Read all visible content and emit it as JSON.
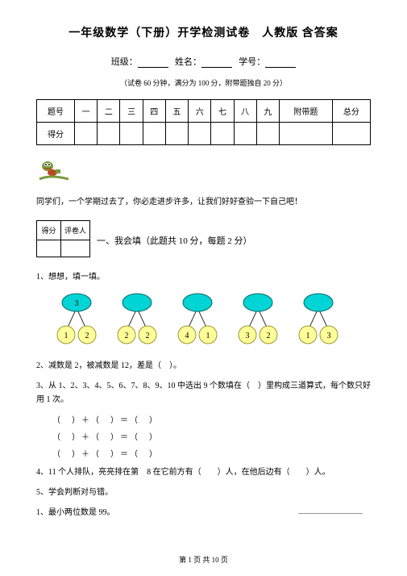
{
  "title": "一年级数学（下册）开学检测试卷　人教版 含答案",
  "info": {
    "class": "班级：",
    "name": "姓名：",
    "id": "学号："
  },
  "note": "（试卷 60 分钟，满分为 100 分，附带题独自 20 分）",
  "table": {
    "r1": [
      "题号",
      "一",
      "二",
      "三",
      "四",
      "五",
      "六",
      "七",
      "八",
      "九",
      "附带题",
      "总分"
    ],
    "r2": "得分"
  },
  "msg": "同学们，一个学期过去了，你必走进步许多，让我们好好查验一下自己吧！",
  "smallTable": {
    "c1": "得分",
    "c2": "评卷人"
  },
  "section1": "一、我会填（此题共 10 分，每题 2 分）",
  "q1": "1、想想，填一填。",
  "nodes": {
    "top": [
      "3",
      "",
      "",
      "",
      ""
    ],
    "botL": [
      "1",
      "2",
      "4",
      "3",
      "1"
    ],
    "botR": [
      "2",
      "2",
      "1",
      "2",
      "3"
    ],
    "cyan": "#00d4d4",
    "yellow": "#ffff99",
    "stroke": "#006666",
    "ystroke": "#999933"
  },
  "q2": "2、减数是 2，被减数是 12，差是（　）。",
  "q3": "3、从 1、2、3、4、5、6、7、8、9、10 中选出 9 个数填在（　）里构成三道算式，每个数只好用 1 次。",
  "eq": "（　）＋（　）＝（　）",
  "q4": "4、11 个人排队，亮亮排在第　8 在它前方有（　　）人，在他后边有（　　）人。",
  "q5": "5、学会判断对与错。",
  "q5a": "1、最小两位数是 99。",
  "footer": "第 1 页 共 10 页"
}
